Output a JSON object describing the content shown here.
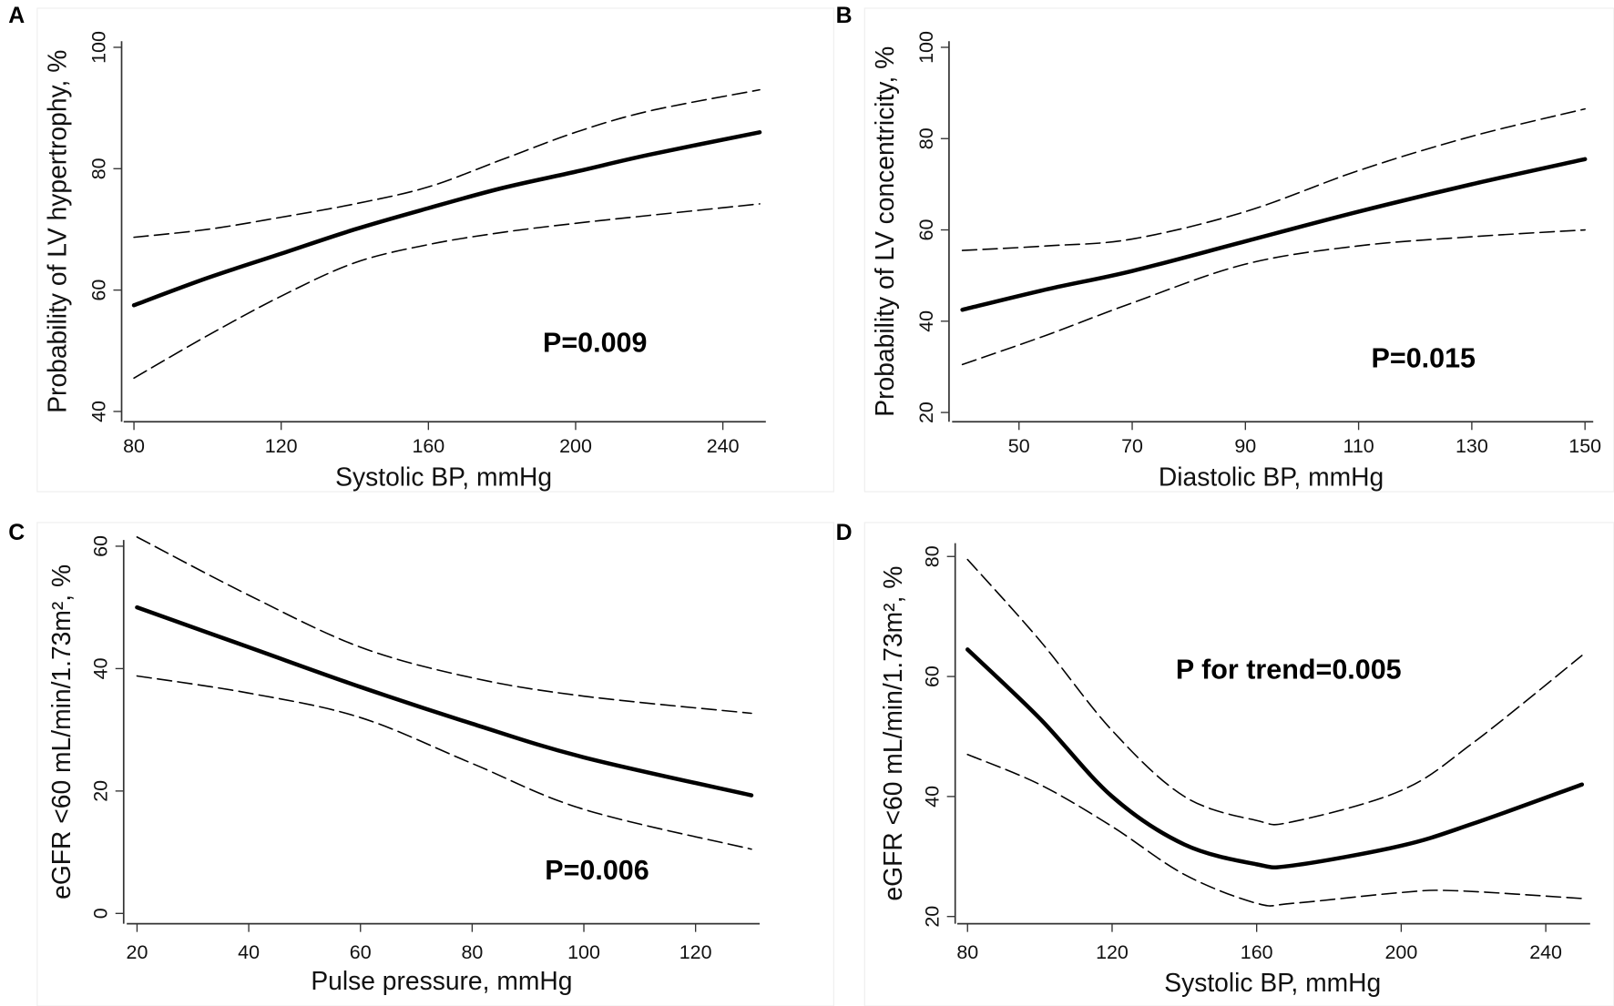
{
  "chart_data": [
    {
      "panel": "A",
      "type": "line",
      "xlabel": "Systolic BP, mmHg",
      "ylabel": "Probability of LV hypertrophy, %",
      "xticks": [
        80,
        120,
        160,
        200,
        240
      ],
      "yticks": [
        40,
        60,
        80,
        100
      ],
      "xlim": [
        80,
        250
      ],
      "ylim": [
        40,
        100
      ],
      "annotation": "P=0.009",
      "series": [
        {
          "name": "estimate",
          "style": "solid",
          "x": [
            80,
            100,
            120,
            140,
            160,
            180,
            200,
            220,
            250
          ],
          "y": [
            57.5,
            62,
            66,
            70,
            73.5,
            76.8,
            79.5,
            82.3,
            86
          ]
        },
        {
          "name": "upper 95% CI",
          "style": "dashed",
          "x": [
            80,
            100,
            120,
            140,
            160,
            180,
            200,
            220,
            250
          ],
          "y": [
            68.7,
            70,
            72,
            74.2,
            77,
            81.5,
            86,
            89.5,
            93
          ]
        },
        {
          "name": "lower 95% CI",
          "style": "dashed",
          "x": [
            80,
            100,
            120,
            140,
            160,
            180,
            200,
            220,
            250
          ],
          "y": [
            45.5,
            52.5,
            59,
            64.5,
            67.5,
            69.5,
            71,
            72.3,
            74.2
          ]
        }
      ]
    },
    {
      "panel": "B",
      "type": "line",
      "xlabel": "Diastolic BP, mmHg",
      "ylabel": "Probability of LV concentricity, %",
      "xticks": [
        50,
        70,
        90,
        110,
        130,
        150
      ],
      "yticks": [
        20,
        40,
        60,
        80,
        100
      ],
      "xlim": [
        40,
        150
      ],
      "ylim": [
        20,
        100
      ],
      "annotation": "P=0.015",
      "series": [
        {
          "name": "estimate",
          "style": "solid",
          "x": [
            40,
            55,
            70,
            90,
            110,
            130,
            150
          ],
          "y": [
            42.5,
            47,
            51,
            57.5,
            64,
            70,
            75.5
          ]
        },
        {
          "name": "upper 95% CI",
          "style": "dashed",
          "x": [
            40,
            55,
            70,
            90,
            110,
            130,
            150
          ],
          "y": [
            55.5,
            56.5,
            58,
            64,
            73,
            80.5,
            86.5
          ]
        },
        {
          "name": "lower 95% CI",
          "style": "dashed",
          "x": [
            40,
            55,
            70,
            90,
            110,
            130,
            150
          ],
          "y": [
            30.5,
            37,
            44,
            52.5,
            56.5,
            58.5,
            60
          ]
        }
      ]
    },
    {
      "panel": "C",
      "type": "line",
      "xlabel": "Pulse pressure, mmHg",
      "ylabel": "eGFR <60 mL/min/1.73m², %",
      "xticks": [
        20,
        40,
        60,
        80,
        100,
        120
      ],
      "yticks": [
        0,
        20,
        40,
        60
      ],
      "xlim": [
        20,
        130
      ],
      "ylim": [
        0,
        62
      ],
      "annotation": "P=0.006",
      "series": [
        {
          "name": "estimate",
          "style": "solid",
          "x": [
            20,
            40,
            60,
            80,
            100,
            130
          ],
          "y": [
            50,
            43.5,
            37,
            31,
            25.5,
            19.3
          ]
        },
        {
          "name": "upper 95% CI",
          "style": "dashed",
          "x": [
            20,
            40,
            60,
            80,
            100,
            130
          ],
          "y": [
            61.5,
            52,
            43.5,
            38.5,
            35.5,
            32.7
          ]
        },
        {
          "name": "lower 95% CI",
          "style": "dashed",
          "x": [
            20,
            40,
            60,
            80,
            100,
            130
          ],
          "y": [
            38.8,
            36,
            32,
            24.5,
            17,
            10.5
          ]
        }
      ]
    },
    {
      "panel": "D",
      "type": "line",
      "xlabel": "Systolic BP, mmHg",
      "ylabel": "eGFR <60 mL/min/1.73m², %",
      "xticks": [
        80,
        120,
        160,
        200,
        240
      ],
      "yticks": [
        20,
        40,
        60,
        80
      ],
      "xlim": [
        80,
        250
      ],
      "ylim": [
        20,
        80
      ],
      "annotation": "P for trend=0.005",
      "series": [
        {
          "name": "estimate",
          "style": "solid",
          "x": [
            80,
            100,
            120,
            140,
            160,
            170,
            200,
            220,
            250
          ],
          "y": [
            64.5,
            53,
            40,
            32,
            28.7,
            28.5,
            31.8,
            35.5,
            42
          ]
        },
        {
          "name": "upper 95% CI",
          "style": "dashed",
          "x": [
            80,
            100,
            120,
            140,
            160,
            170,
            200,
            220,
            250
          ],
          "y": [
            79.5,
            66,
            51,
            40,
            36,
            35.8,
            41,
            49,
            63.5
          ]
        },
        {
          "name": "lower 95% CI",
          "style": "dashed",
          "x": [
            80,
            100,
            120,
            140,
            160,
            170,
            200,
            215,
            250
          ],
          "y": [
            47,
            42,
            35,
            27,
            22.2,
            22.2,
            24,
            24.3,
            23
          ]
        }
      ]
    }
  ]
}
